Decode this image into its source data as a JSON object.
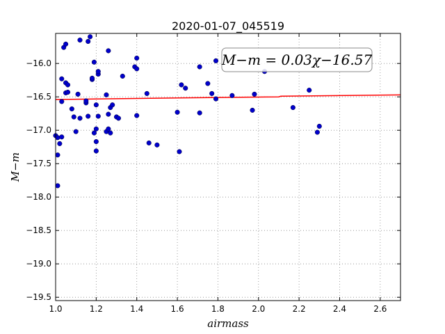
{
  "chart_data": {
    "type": "scatter",
    "title": "2020-01-07_045519",
    "xlabel": "airmass",
    "ylabel": "M−m",
    "xlim": [
      1.0,
      2.7
    ],
    "ylim": [
      -19.55,
      -15.55
    ],
    "y_inverted": false,
    "grid": true,
    "x_ticks": [
      "1.0",
      "1.2",
      "1.4",
      "1.6",
      "1.8",
      "2.0",
      "2.2",
      "2.4",
      "2.6"
    ],
    "y_ticks": [
      "−16.0",
      "−16.5",
      "−17.0",
      "−17.5",
      "−18.0",
      "−18.5",
      "−19.0",
      "−19.5"
    ],
    "fit_label": "M−m = 0.03χ−16.57",
    "colors": {
      "points": "#0000cc",
      "fit_line": "#ff0000",
      "grid": "#888888"
    },
    "points": [
      {
        "x": 1.0,
        "y": -17.08
      },
      {
        "x": 1.01,
        "y": -17.11
      },
      {
        "x": 1.01,
        "y": -17.37
      },
      {
        "x": 1.01,
        "y": -17.83
      },
      {
        "x": 1.02,
        "y": -17.2
      },
      {
        "x": 1.03,
        "y": -17.1
      },
      {
        "x": 1.03,
        "y": -16.57
      },
      {
        "x": 1.03,
        "y": -16.23
      },
      {
        "x": 1.04,
        "y": -15.76
      },
      {
        "x": 1.05,
        "y": -15.71
      },
      {
        "x": 1.05,
        "y": -16.44
      },
      {
        "x": 1.05,
        "y": -16.29
      },
      {
        "x": 1.06,
        "y": -16.32
      },
      {
        "x": 1.06,
        "y": -16.43
      },
      {
        "x": 1.08,
        "y": -16.68
      },
      {
        "x": 1.09,
        "y": -16.8
      },
      {
        "x": 1.1,
        "y": -17.02
      },
      {
        "x": 1.11,
        "y": -16.46
      },
      {
        "x": 1.12,
        "y": -16.82
      },
      {
        "x": 1.12,
        "y": -15.65
      },
      {
        "x": 1.15,
        "y": -16.59
      },
      {
        "x": 1.15,
        "y": -16.56
      },
      {
        "x": 1.16,
        "y": -16.79
      },
      {
        "x": 1.16,
        "y": -15.67
      },
      {
        "x": 1.17,
        "y": -15.6
      },
      {
        "x": 1.18,
        "y": -16.24
      },
      {
        "x": 1.18,
        "y": -16.22
      },
      {
        "x": 1.19,
        "y": -15.98
      },
      {
        "x": 1.19,
        "y": -17.04
      },
      {
        "x": 1.2,
        "y": -16.98
      },
      {
        "x": 1.2,
        "y": -17.17
      },
      {
        "x": 1.2,
        "y": -17.31
      },
      {
        "x": 1.2,
        "y": -16.62
      },
      {
        "x": 1.21,
        "y": -16.79
      },
      {
        "x": 1.21,
        "y": -16.16
      },
      {
        "x": 1.21,
        "y": -16.12
      },
      {
        "x": 1.25,
        "y": -16.47
      },
      {
        "x": 1.25,
        "y": -17.02
      },
      {
        "x": 1.26,
        "y": -16.98
      },
      {
        "x": 1.26,
        "y": -16.76
      },
      {
        "x": 1.26,
        "y": -15.81
      },
      {
        "x": 1.27,
        "y": -16.66
      },
      {
        "x": 1.27,
        "y": -17.04
      },
      {
        "x": 1.28,
        "y": -16.62
      },
      {
        "x": 1.3,
        "y": -16.8
      },
      {
        "x": 1.31,
        "y": -16.82
      },
      {
        "x": 1.33,
        "y": -16.19
      },
      {
        "x": 1.39,
        "y": -16.05
      },
      {
        "x": 1.4,
        "y": -16.08
      },
      {
        "x": 1.4,
        "y": -15.92
      },
      {
        "x": 1.4,
        "y": -16.78
      },
      {
        "x": 1.45,
        "y": -16.45
      },
      {
        "x": 1.46,
        "y": -17.19
      },
      {
        "x": 1.5,
        "y": -17.22
      },
      {
        "x": 1.6,
        "y": -16.73
      },
      {
        "x": 1.61,
        "y": -17.32
      },
      {
        "x": 1.62,
        "y": -16.32
      },
      {
        "x": 1.64,
        "y": -16.37
      },
      {
        "x": 1.71,
        "y": -16.05
      },
      {
        "x": 1.71,
        "y": -16.74
      },
      {
        "x": 1.75,
        "y": -16.3
      },
      {
        "x": 1.77,
        "y": -16.45
      },
      {
        "x": 1.79,
        "y": -16.53
      },
      {
        "x": 1.79,
        "y": -15.96
      },
      {
        "x": 1.87,
        "y": -16.48
      },
      {
        "x": 1.97,
        "y": -16.7
      },
      {
        "x": 1.98,
        "y": -16.46
      },
      {
        "x": 2.03,
        "y": -16.12
      },
      {
        "x": 2.17,
        "y": -16.66
      },
      {
        "x": 2.25,
        "y": -16.4
      },
      {
        "x": 2.29,
        "y": -17.03
      },
      {
        "x": 2.3,
        "y": -16.94
      }
    ],
    "fit_line": [
      {
        "x": 1.0,
        "y": -16.54
      },
      {
        "x": 1.5,
        "y": -16.52
      },
      {
        "x": 2.1,
        "y": -16.5
      },
      {
        "x": 2.11,
        "y": -16.49
      },
      {
        "x": 2.7,
        "y": -16.47
      }
    ]
  }
}
